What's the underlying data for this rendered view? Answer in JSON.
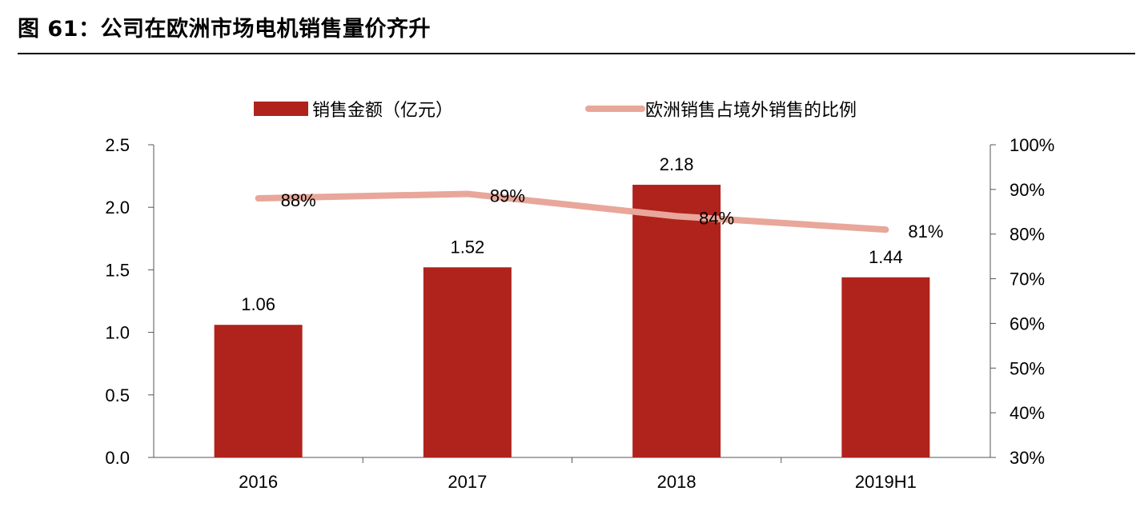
{
  "figure": {
    "title": "图 61：公司在欧洲市场电机销售量价齐升"
  },
  "chart_data": {
    "type": "bar",
    "categories": [
      "2016",
      "2017",
      "2018",
      "2019H1"
    ],
    "series": [
      {
        "name": "销售金额（亿元）",
        "type": "bar",
        "axis": "left",
        "color": "#b0221c",
        "values": [
          1.06,
          1.52,
          2.18,
          1.44
        ],
        "labels": [
          "1.06",
          "1.52",
          "2.18",
          "1.44"
        ]
      },
      {
        "name": "欧洲销售占境外销售的比例",
        "type": "line",
        "axis": "right",
        "color": "#e8a79a",
        "values": [
          0.88,
          0.89,
          0.84,
          0.81
        ],
        "labels": [
          "88%",
          "89%",
          "84%",
          "81%"
        ]
      }
    ],
    "left_axis": {
      "ylim": [
        0,
        2.5
      ],
      "ticks": [
        0,
        0.5,
        1.0,
        1.5,
        2.0,
        2.5
      ],
      "tick_labels": [
        "0.0",
        "0.5",
        "1.0",
        "1.5",
        "2.0",
        "2.5"
      ]
    },
    "right_axis": {
      "ylim": [
        0.3,
        1.0
      ],
      "ticks": [
        0.3,
        0.4,
        0.5,
        0.6,
        0.7,
        0.8,
        0.9,
        1.0
      ],
      "tick_labels": [
        "30%",
        "40%",
        "50%",
        "60%",
        "70%",
        "80%",
        "90%",
        "100%"
      ]
    },
    "legend_position": "top-center",
    "grid": false
  }
}
